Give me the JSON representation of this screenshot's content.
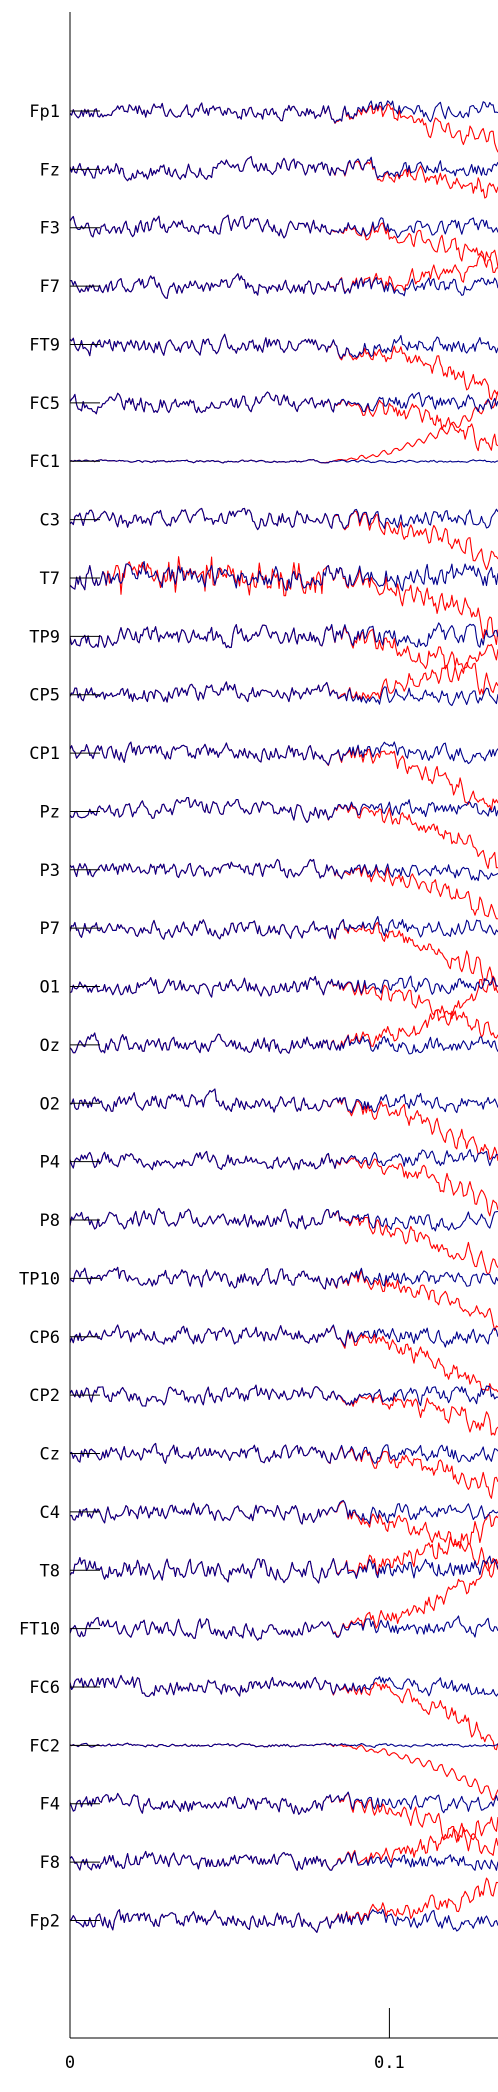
{
  "chart_data": {
    "type": "line",
    "title": "",
    "xlabel": "",
    "ylabel": "",
    "xlim": [
      0,
      0.134
    ],
    "x_ticks": [
      {
        "value": 0,
        "label": "0"
      },
      {
        "value": 0.1,
        "label": "0.1"
      }
    ],
    "grid": false,
    "legend": "none",
    "channels": [
      "Fp1",
      "Fz",
      "F3",
      "F7",
      "FT9",
      "FC5",
      "FC1",
      "C3",
      "T7",
      "TP9",
      "CP5",
      "CP1",
      "Pz",
      "P3",
      "P7",
      "O1",
      "Oz",
      "O2",
      "P4",
      "P8",
      "TP10",
      "CP6",
      "CP2",
      "Cz",
      "C4",
      "T8",
      "FT10",
      "FC6",
      "FC2",
      "F4",
      "F8",
      "Fp2"
    ],
    "series": [
      {
        "color": "#ff0000"
      },
      {
        "color": "#00008b"
      }
    ]
  }
}
